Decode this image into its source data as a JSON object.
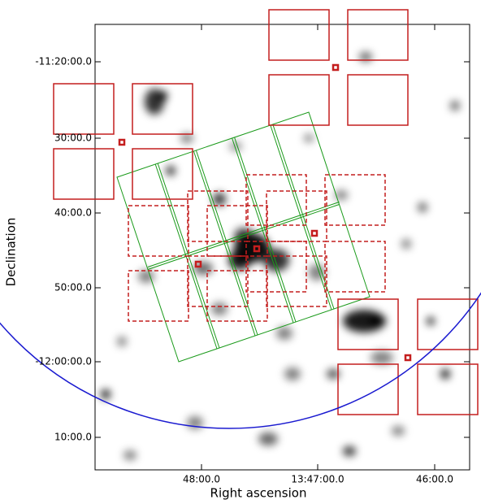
{
  "axes": {
    "x_label": "Right ascension",
    "y_label": "Declination",
    "x_ticks": [
      "48:00.0",
      "13:47:00.0",
      "46:00.0"
    ],
    "y_ticks": [
      "-11:20:00.0",
      "30:00.0",
      "40:00.0",
      "50:00.0",
      "-12:00:00.0",
      "10:00.0"
    ]
  }
}
